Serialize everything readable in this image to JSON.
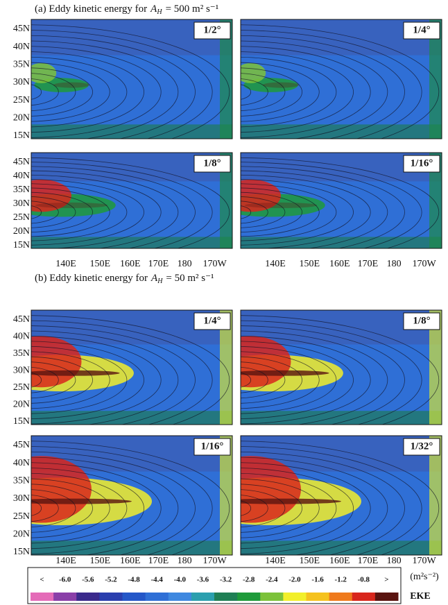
{
  "sections": [
    {
      "prefix": "(a) Eddy kinetic energy for",
      "symbol": "A",
      "subscript": "H",
      "rest": "= 500 m² s⁻¹",
      "panels": [
        {
          "label": "1/2°"
        },
        {
          "label": "1/4°"
        },
        {
          "label": "1/8°"
        },
        {
          "label": "1/16°"
        }
      ]
    },
    {
      "prefix": "(b) Eddy kinetic energy for",
      "symbol": "A",
      "subscript": "H",
      "rest": "= 50 m² s⁻¹",
      "panels": [
        {
          "label": "1/4°"
        },
        {
          "label": "1/8°"
        },
        {
          "label": "1/16°"
        },
        {
          "label": "1/32°"
        }
      ]
    }
  ],
  "latitude_labels": [
    "45N",
    "40N",
    "35N",
    "30N",
    "25N",
    "20N",
    "15N"
  ],
  "longitude_labels": [
    "140E",
    "150E",
    "160E",
    "170E",
    "180",
    "170W"
  ],
  "colorbar": {
    "labels": [
      "<",
      "-6.0",
      "-5.6",
      "-5.2",
      "-4.8",
      "-4.4",
      "-4.0",
      "-3.6",
      "-3.2",
      "-2.8",
      "-2.4",
      "-2.0",
      "-1.6",
      "-1.2",
      "-0.8",
      ">"
    ],
    "colors": [
      "#e46bb8",
      "#8a3fa8",
      "#3b2a8c",
      "#2a3fae",
      "#2457c8",
      "#2f6fd6",
      "#3f88e0",
      "#2b9fae",
      "#1f7f55",
      "#1e9a3a",
      "#7cc23a",
      "#f2ef2a",
      "#f5c21e",
      "#ef7a1c",
      "#d8261c",
      "#5a1410"
    ],
    "unit": "(m²s⁻²)",
    "name": "EKE"
  }
}
